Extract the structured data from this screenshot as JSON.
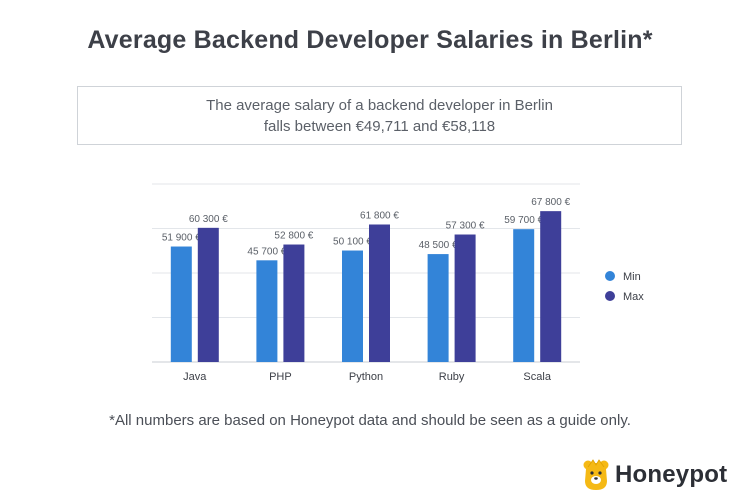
{
  "title": "Average Backend Developer Salaries in Berlin*",
  "summary": {
    "line1": "The average salary of a backend developer in Berlin",
    "line2": "falls between €49,711 and €58,118"
  },
  "footnote": "*All numbers are based on Honeypot data and should be seen as a guide only.",
  "brand": {
    "name": "Honeypot",
    "icon": "bear-head-icon"
  },
  "colors": {
    "min": "#3384d8",
    "max": "#3e3f99",
    "grid": "#e3e6ea",
    "text": "#5b6068"
  },
  "chart_data": {
    "type": "bar",
    "title": "",
    "xlabel": "",
    "ylabel": "",
    "categories": [
      "Java",
      "PHP",
      "Python",
      "Ruby",
      "Scala"
    ],
    "series": [
      {
        "name": "Min",
        "values": [
          51900,
          45700,
          50100,
          48500,
          59700
        ],
        "labels": [
          "51 900 €",
          "45 700 €",
          "50 100 €",
          "48 500 €",
          "59 700 €"
        ]
      },
      {
        "name": "Max",
        "values": [
          60300,
          52800,
          61800,
          57300,
          67800
        ],
        "labels": [
          "60 300 €",
          "52 800 €",
          "61 800 €",
          "57 300 €",
          "67 800 €"
        ]
      }
    ],
    "ylim": [
      0,
      80000
    ],
    "grid": true,
    "legend": "right"
  }
}
